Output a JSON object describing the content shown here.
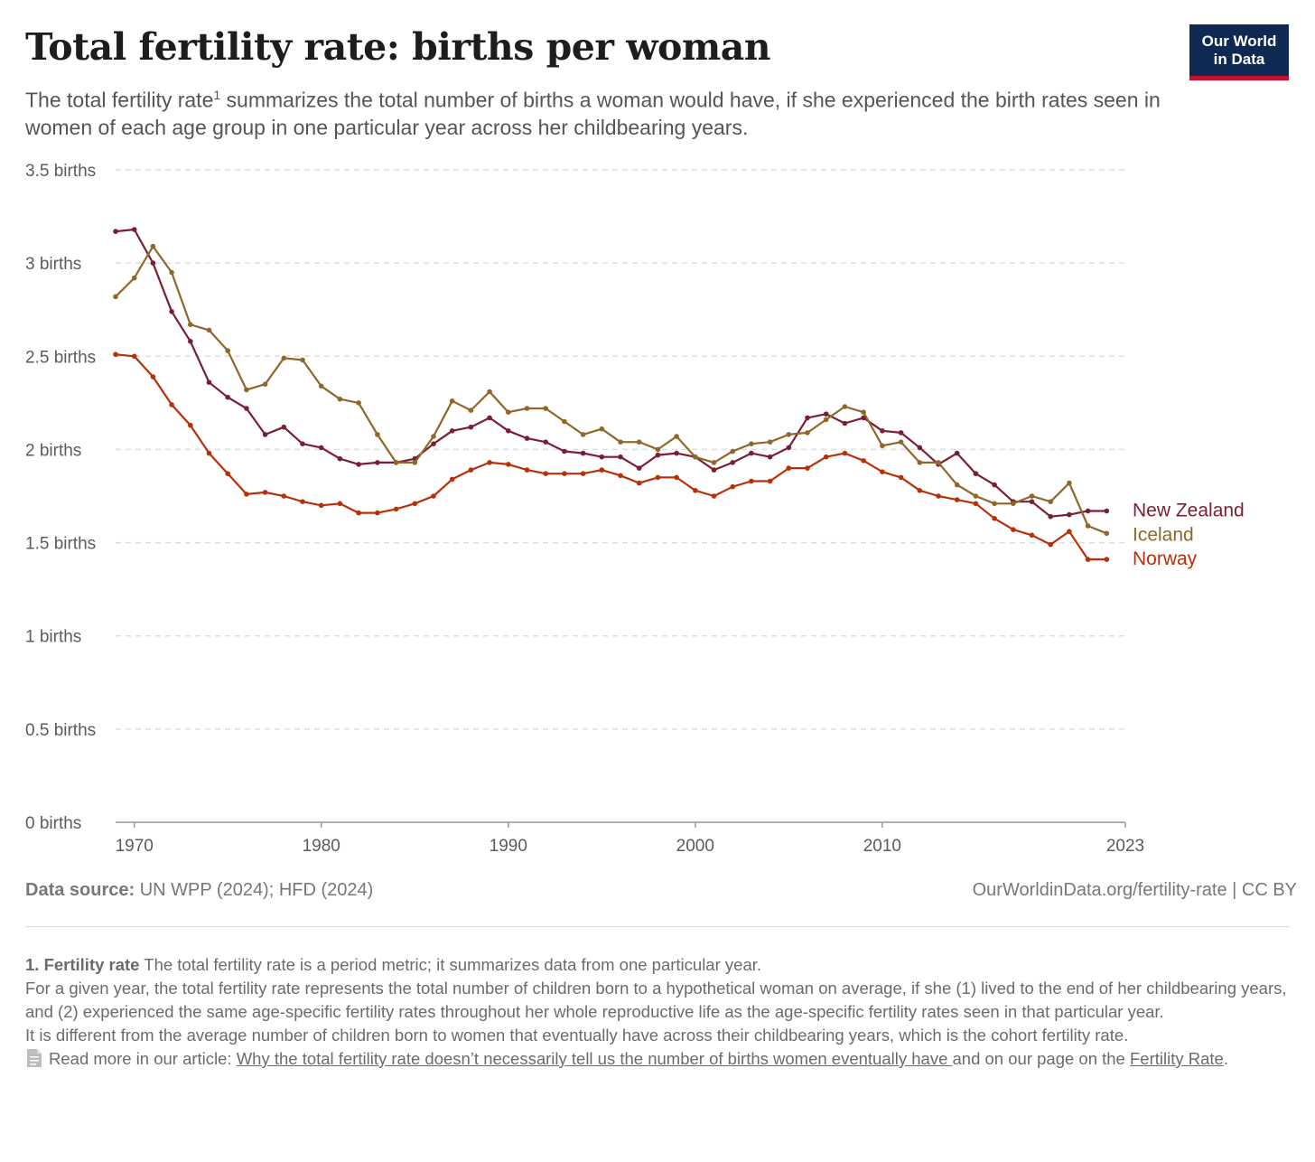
{
  "header": {
    "title": "Total fertility rate: births per woman",
    "subtitle_before": "The total fertility rate",
    "subtitle_sup": "1",
    "subtitle_after": " summarizes the total number of births a woman would have, if she experienced the birth rates seen in women of each age group in one particular year across her childbearing years.",
    "logo_line1": "Our World",
    "logo_line2": "in Data",
    "logo_color": "#0f2a52",
    "logo_accent": "#c8102e"
  },
  "chart_data": {
    "type": "line",
    "xlim": [
      1969,
      2023
    ],
    "ylim": [
      0,
      3.5
    ],
    "grid": "horizontal dashed",
    "x_ticks": [
      {
        "value": 1970,
        "label": "1970"
      },
      {
        "value": 1980,
        "label": "1980"
      },
      {
        "value": 1990,
        "label": "1990"
      },
      {
        "value": 2000,
        "label": "2000"
      },
      {
        "value": 2010,
        "label": "2010"
      },
      {
        "value": 2023,
        "label": "2023"
      }
    ],
    "y_ticks": [
      {
        "value": 0,
        "label": "0 births"
      },
      {
        "value": 0.5,
        "label": "0.5 births"
      },
      {
        "value": 1,
        "label": "1 births"
      },
      {
        "value": 1.5,
        "label": "1.5 births"
      },
      {
        "value": 2,
        "label": "2 births"
      },
      {
        "value": 2.5,
        "label": "2.5 births"
      },
      {
        "value": 3,
        "label": "3 births"
      },
      {
        "value": 3.5,
        "label": "3.5 births"
      }
    ],
    "x_start": 1969,
    "series": [
      {
        "name": "New Zealand",
        "color": "#7b1e33",
        "values": [
          3.17,
          3.18,
          3.0,
          2.74,
          2.58,
          2.36,
          2.28,
          2.22,
          2.08,
          2.12,
          2.03,
          2.01,
          1.95,
          1.92,
          1.93,
          1.93,
          1.95,
          2.03,
          2.1,
          2.12,
          2.17,
          2.1,
          2.06,
          2.04,
          1.99,
          1.98,
          1.96,
          1.96,
          1.9,
          1.97,
          1.98,
          1.96,
          1.89,
          1.93,
          1.98,
          1.96,
          2.01,
          2.17,
          2.19,
          2.14,
          2.17,
          2.1,
          2.09,
          2.01,
          1.92,
          1.98,
          1.87,
          1.81,
          1.72,
          1.72,
          1.64,
          1.65,
          1.67,
          1.67
        ]
      },
      {
        "name": "Iceland",
        "color": "#8f672a",
        "values": [
          2.82,
          2.92,
          3.09,
          2.95,
          2.67,
          2.64,
          2.53,
          2.32,
          2.35,
          2.49,
          2.48,
          2.34,
          2.27,
          2.25,
          2.08,
          1.93,
          1.93,
          2.07,
          2.26,
          2.21,
          2.31,
          2.2,
          2.22,
          2.22,
          2.15,
          2.08,
          2.11,
          2.04,
          2.04,
          2.0,
          2.07,
          1.96,
          1.93,
          1.99,
          2.03,
          2.04,
          2.08,
          2.09,
          2.16,
          2.23,
          2.2,
          2.02,
          2.04,
          1.93,
          1.93,
          1.81,
          1.75,
          1.71,
          1.71,
          1.75,
          1.72,
          1.82,
          1.59,
          1.55
        ]
      },
      {
        "name": "Norway",
        "color": "#b8300a",
        "values": [
          2.51,
          2.5,
          2.39,
          2.24,
          2.13,
          1.98,
          1.87,
          1.76,
          1.77,
          1.75,
          1.72,
          1.7,
          1.71,
          1.66,
          1.66,
          1.68,
          1.71,
          1.75,
          1.84,
          1.89,
          1.93,
          1.92,
          1.89,
          1.87,
          1.87,
          1.87,
          1.89,
          1.86,
          1.82,
          1.85,
          1.85,
          1.78,
          1.75,
          1.8,
          1.83,
          1.83,
          1.9,
          1.9,
          1.96,
          1.98,
          1.94,
          1.88,
          1.85,
          1.78,
          1.75,
          1.73,
          1.71,
          1.63,
          1.57,
          1.54,
          1.49,
          1.56,
          1.41,
          1.41
        ]
      }
    ]
  },
  "footer": {
    "source_label": "Data source:",
    "source_value": " UN WPP (2024); HFD (2024)",
    "url_license": "OurWorldinData.org/fertility-rate | CC BY"
  },
  "footnote": {
    "term": "1. Fertility rate",
    "term_text": " The total fertility rate is a period metric; it summarizes data from one particular year.",
    "para2": "For a given year, the total fertility rate represents the total number of children born to a hypothetical woman on average, if she (1) lived to the end of her childbearing years, and (2) experienced the same age-specific fertility rates throughout her whole reproductive life as the age-specific fertility rates seen in that particular year.",
    "para3": "It is different from the average number of children born to women that eventually have across their childbearing years, which is the  cohort fertility rate.",
    "read_more": "Read more in our article: ",
    "article_link": "Why the total fertility rate doesn’t necessarily tell us the number of births women eventually have ",
    "mid_text": " and on our page on the ",
    "page_link": "Fertility Rate",
    "end": "."
  }
}
